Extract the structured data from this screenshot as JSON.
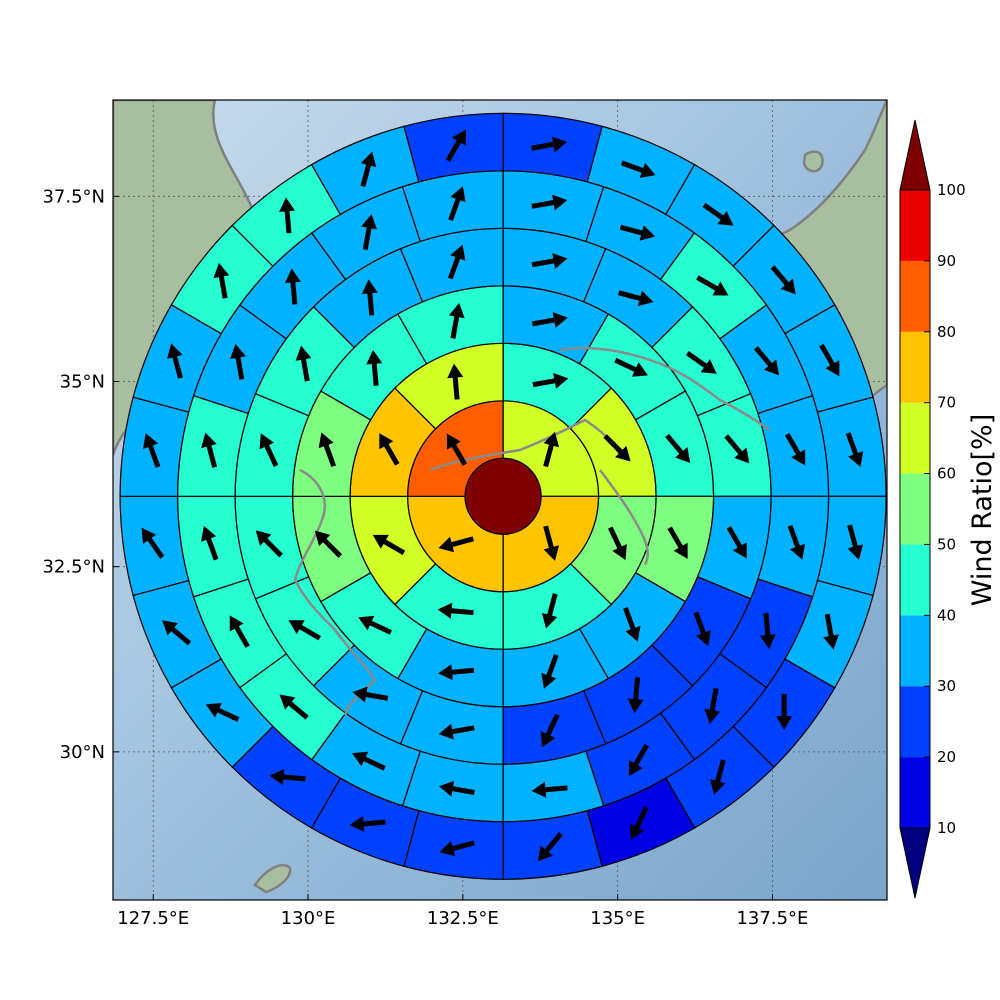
{
  "chart_data": {
    "type": "heatmap",
    "title": "",
    "xlabel": "",
    "ylabel": "",
    "x_ticks": [
      "127.5°E",
      "130°E",
      "132.5°E",
      "135°E",
      "137.5°E"
    ],
    "y_ticks": [
      "37.5°N",
      "35°N",
      "32.5°N",
      "30°N"
    ],
    "x_tick_values": [
      127.5,
      130.0,
      132.5,
      135.0,
      137.5
    ],
    "y_tick_values": [
      37.5,
      35.0,
      32.5,
      30.0
    ],
    "xlim": [
      126.85,
      139.35
    ],
    "ylim": [
      28.0,
      38.8
    ],
    "grid": true,
    "center": {
      "lon": 133.15,
      "lat": 33.45,
      "value": 100
    },
    "colorbar": {
      "label": "Wind Ratio[%]",
      "ticks": [
        "10",
        "20",
        "30",
        "40",
        "50",
        "60",
        "70",
        "80",
        "90",
        "100"
      ],
      "tick_values": [
        10,
        20,
        30,
        40,
        50,
        60,
        70,
        80,
        90,
        100
      ],
      "extend": "both",
      "colors": [
        "#00007f",
        "#0000e6",
        "#0040ff",
        "#00b2ff",
        "#26ffd2",
        "#7fff7f",
        "#d2ff26",
        "#ffc400",
        "#ff5e00",
        "#ef0000",
        "#7f0000"
      ]
    },
    "rings": [
      {
        "ring": 1,
        "sectors": 4,
        "values": [
          65,
          75,
          75,
          85
        ],
        "directions": [
          15,
          165,
          255,
          330
        ]
      },
      {
        "ring": 2,
        "sectors": 8,
        "values": [
          45,
          65,
          55,
          45,
          45,
          65,
          75,
          65
        ],
        "directions": [
          80,
          135,
          155,
          195,
          275,
          300,
          330,
          355
        ]
      },
      {
        "ring": 3,
        "sectors": 12,
        "values": [
          35,
          45,
          45,
          55,
          35,
          35,
          35,
          45,
          55,
          55,
          45,
          45
        ],
        "directions": [
          80,
          115,
          140,
          150,
          160,
          200,
          265,
          295,
          315,
          340,
          355,
          10
        ]
      },
      {
        "ring": 4,
        "sectors": 16,
        "values": [
          35,
          35,
          45,
          45,
          35,
          25,
          25,
          25,
          35,
          35,
          45,
          45,
          45,
          45,
          35,
          35
        ],
        "directions": [
          80,
          105,
          125,
          140,
          150,
          160,
          185,
          205,
          260,
          280,
          300,
          315,
          335,
          350,
          355,
          20
        ]
      },
      {
        "ring": 5,
        "sectors": 20,
        "values": [
          35,
          35,
          45,
          35,
          35,
          35,
          25,
          25,
          25,
          35,
          35,
          35,
          45,
          45,
          45,
          45,
          35,
          35,
          35,
          35
        ],
        "directions": [
          80,
          105,
          120,
          140,
          150,
          160,
          175,
          190,
          210,
          265,
          280,
          295,
          310,
          330,
          340,
          345,
          350,
          355,
          10,
          20
        ]
      },
      {
        "ring": 6,
        "sectors": 24,
        "values": [
          25,
          35,
          35,
          35,
          35,
          35,
          35,
          35,
          25,
          25,
          15,
          25,
          25,
          25,
          25,
          35,
          35,
          35,
          35,
          35,
          45,
          45,
          35,
          25
        ],
        "directions": [
          80,
          110,
          125,
          140,
          150,
          160,
          165,
          170,
          180,
          195,
          205,
          220,
          255,
          265,
          275,
          295,
          310,
          325,
          340,
          345,
          350,
          355,
          15,
          30
        ]
      }
    ]
  }
}
